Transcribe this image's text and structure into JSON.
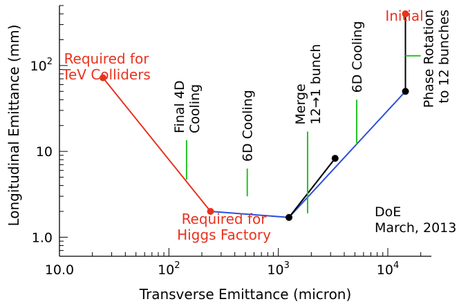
{
  "chart_data": {
    "type": "line",
    "title": "",
    "xlabel": "Transverse Emittance (micron)",
    "ylabel": "Longitudinal Emittance (mm)",
    "xscale": "log",
    "yscale": "log",
    "xlim": [
      10,
      25000
    ],
    "ylim": [
      0.6,
      500
    ],
    "grid": false,
    "x_ticks": [
      {
        "value": 10,
        "base": "10.0",
        "exp": ""
      },
      {
        "value": 100,
        "base": "10",
        "exp": "2"
      },
      {
        "value": 1000,
        "base": "10",
        "exp": "3"
      },
      {
        "value": 10000,
        "base": "10",
        "exp": "4"
      }
    ],
    "y_ticks": [
      {
        "value": 1,
        "base": "1.0",
        "exp": ""
      },
      {
        "value": 10,
        "base": "10",
        "exp": ""
      },
      {
        "value": 100,
        "base": "10",
        "exp": "2"
      }
    ],
    "colors": {
      "red": "#e8321e",
      "blue": "#2a4fd8",
      "black": "#000000",
      "green": "#22c222"
    },
    "series": [
      {
        "color": "red",
        "points": [
          [
            25,
            72
          ],
          [
            240,
            2.0
          ]
        ]
      },
      {
        "color": "blue",
        "points": [
          [
            240,
            2.0
          ],
          [
            1250,
            1.7
          ],
          [
            3300,
            8.3
          ]
        ]
      },
      {
        "color": "blue",
        "points": [
          [
            1250,
            1.7
          ],
          [
            14500,
            50
          ]
        ]
      },
      {
        "color": "black",
        "points": [
          [
            1250,
            1.7
          ],
          [
            3300,
            8.3
          ]
        ]
      },
      {
        "color": "black",
        "points": [
          [
            14500,
            400
          ],
          [
            14500,
            50
          ]
        ]
      }
    ],
    "markers": [
      {
        "x": 25,
        "y": 72,
        "color": "red"
      },
      {
        "x": 240,
        "y": 2.0,
        "color": "red"
      },
      {
        "x": 14500,
        "y": 400,
        "color": "red"
      },
      {
        "x": 1250,
        "y": 1.7,
        "color": "black"
      },
      {
        "x": 3300,
        "y": 8.3,
        "color": "black"
      },
      {
        "x": 14500,
        "y": 50,
        "color": "black"
      }
    ],
    "stages": [
      {
        "lines": [
          "Final 4D",
          "Cooling"
        ],
        "x": 145,
        "y_from": 4.7,
        "y_to": 13.5
      },
      {
        "lines": [
          "6D Cooling"
        ],
        "x": 520,
        "y_from": 3.0,
        "y_to": 6.3
      },
      {
        "lines": [
          "Merge",
          "12→1 bunch"
        ],
        "x": 1850,
        "y_from": 1.9,
        "y_to": 17
      },
      {
        "lines": [
          "6D Cooling"
        ],
        "x": 5200,
        "y_from": 12,
        "y_to": 40
      },
      {
        "lines": [
          "Phase Rotation",
          "to 12 bunches"
        ],
        "x": 14500,
        "x_to": 20000,
        "y": 130
      }
    ],
    "annotations": [
      {
        "lines": [
          "Required for",
          "TeV Colliders"
        ],
        "color": "red"
      },
      {
        "lines": [
          "Required for",
          "Higgs Factory"
        ],
        "color": "red"
      },
      {
        "lines": [
          "Initial"
        ],
        "color": "red"
      },
      {
        "lines": [
          "DoE",
          "March, 2013"
        ],
        "color": "black"
      }
    ]
  }
}
